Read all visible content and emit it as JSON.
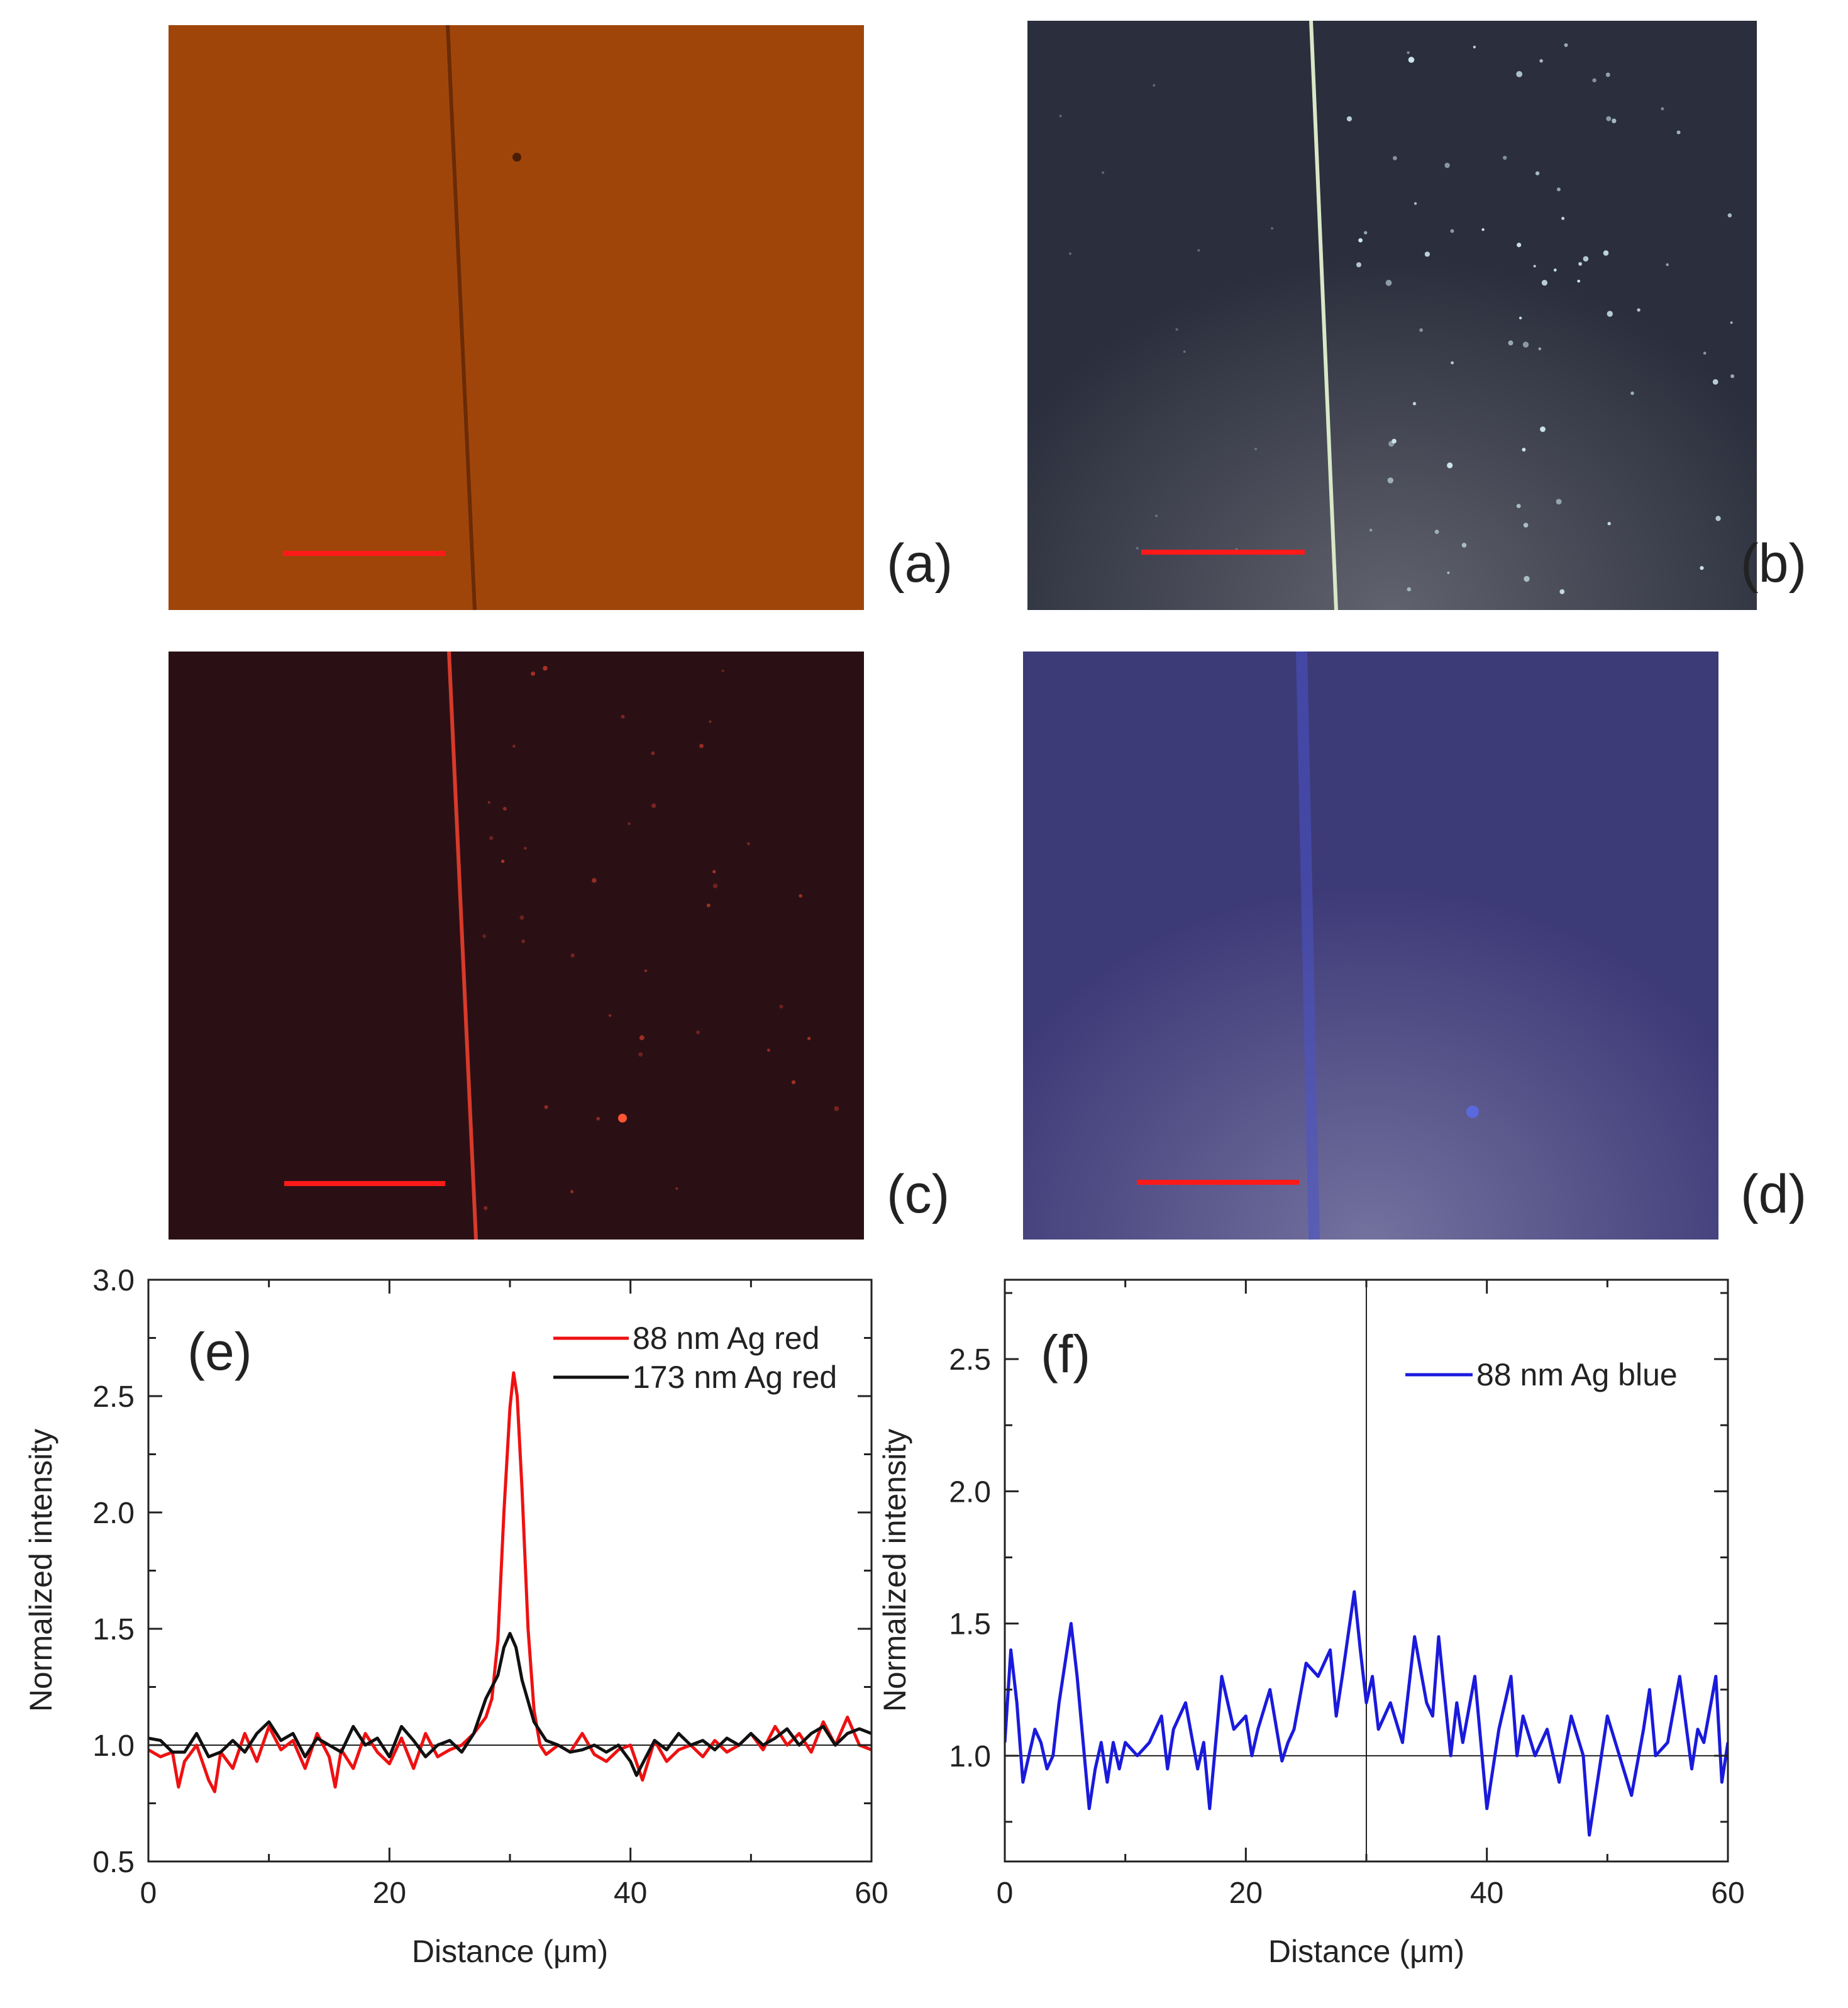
{
  "photos": [
    {
      "label": "(a)",
      "colors": {
        "base": "#a0450a",
        "line": "#6a2b05",
        "scalebar": "#ff1a1a"
      }
    },
    {
      "label": "(b)",
      "colors": {
        "base": "#2b2e3c",
        "line": "#d8e8c8",
        "scalebar": "#ff1a1a"
      }
    },
    {
      "label": "(c)",
      "colors": {
        "base": "#2a1015",
        "line": "#d83a2a",
        "scalebar": "#ff1a1a"
      }
    },
    {
      "label": "(d)",
      "colors": {
        "base": "#3d3a78",
        "line": "#4a54c8",
        "scalebar": "#ff1a1a"
      }
    }
  ],
  "chart_data": [
    {
      "type": "line",
      "panel_label": "(e)",
      "xlabel": "Distance (μm)",
      "ylabel": "Normalized intensity",
      "xlim": [
        0,
        60
      ],
      "ylim": [
        0.5,
        3.0
      ],
      "xticks": [
        0,
        20,
        40,
        60
      ],
      "xtick_labels": [
        "0",
        "20",
        "40",
        "60"
      ],
      "yticks": [
        0.5,
        1.0,
        1.5,
        2.0,
        2.5,
        3.0
      ],
      "ytick_labels": [
        "0.5",
        "1.0",
        "1.5",
        "2.0",
        "2.5",
        "3.0"
      ],
      "reference_lines": {
        "y": 1.0
      },
      "legend_position": "top-right",
      "series": [
        {
          "name": "88 nm Ag red",
          "color": "#ee1111",
          "x": [
            0,
            1,
            2,
            2.5,
            3,
            4,
            5,
            5.5,
            6,
            7,
            8,
            9,
            10,
            11,
            12,
            13,
            14,
            15,
            15.5,
            16,
            17,
            18,
            19,
            20,
            21,
            22,
            23,
            24,
            25,
            26,
            27,
            28,
            28.5,
            29,
            29.5,
            30,
            30.3,
            30.6,
            31,
            31.5,
            32,
            32.5,
            33,
            34,
            35,
            36,
            37,
            38,
            39,
            40,
            41,
            42,
            43,
            44,
            45,
            46,
            47,
            48,
            49,
            50,
            51,
            52,
            53,
            54,
            55,
            56,
            57,
            58,
            59,
            60
          ],
          "y": [
            0.98,
            0.95,
            0.97,
            0.82,
            0.93,
            1.0,
            0.85,
            0.8,
            0.97,
            0.9,
            1.05,
            0.93,
            1.08,
            0.98,
            1.02,
            0.9,
            1.05,
            0.95,
            0.82,
            0.98,
            0.9,
            1.05,
            0.97,
            0.92,
            1.03,
            0.9,
            1.05,
            0.95,
            0.98,
            1.0,
            1.05,
            1.12,
            1.2,
            1.45,
            2.0,
            2.45,
            2.6,
            2.5,
            2.1,
            1.5,
            1.15,
            1.0,
            0.96,
            1.0,
            0.97,
            1.05,
            0.96,
            0.93,
            0.98,
            1.0,
            0.85,
            1.02,
            0.93,
            0.98,
            1.0,
            0.95,
            1.02,
            0.97,
            1.0,
            1.05,
            0.98,
            1.08,
            1.0,
            1.05,
            0.97,
            1.1,
            1.0,
            1.12,
            1.0,
            0.98
          ]
        },
        {
          "name": "173 nm Ag red",
          "color": "#111111",
          "x": [
            0,
            1,
            2,
            3,
            4,
            5,
            6,
            7,
            8,
            9,
            10,
            11,
            12,
            13,
            14,
            15,
            16,
            17,
            18,
            19,
            20,
            21,
            22,
            23,
            24,
            25,
            26,
            27,
            28,
            29,
            29.5,
            30,
            30.5,
            31,
            32,
            33,
            34,
            35,
            36,
            37,
            38,
            39,
            40,
            40.5,
            41,
            42,
            43,
            44,
            45,
            46,
            47,
            48,
            49,
            50,
            51,
            52,
            53,
            54,
            55,
            56,
            57,
            58,
            59,
            60
          ],
          "y": [
            1.03,
            1.02,
            0.97,
            0.97,
            1.05,
            0.95,
            0.97,
            1.02,
            0.97,
            1.05,
            1.1,
            1.02,
            1.05,
            0.95,
            1.03,
            1.0,
            0.97,
            1.08,
            1.0,
            1.03,
            0.95,
            1.08,
            1.02,
            0.95,
            1.0,
            1.02,
            0.97,
            1.05,
            1.2,
            1.3,
            1.42,
            1.48,
            1.42,
            1.28,
            1.1,
            1.02,
            1.0,
            0.97,
            0.98,
            1.0,
            0.97,
            1.0,
            0.93,
            0.87,
            0.92,
            1.02,
            0.98,
            1.05,
            1.0,
            1.02,
            0.98,
            1.03,
            1.0,
            1.05,
            1.0,
            1.03,
            1.07,
            1.0,
            1.05,
            1.08,
            1.0,
            1.05,
            1.07,
            1.05
          ]
        }
      ]
    },
    {
      "type": "line",
      "panel_label": "(f)",
      "xlabel": "Distance (μm)",
      "ylabel": "Normalized intensity",
      "xlim": [
        0,
        60
      ],
      "ylim": [
        0.6,
        2.8
      ],
      "xticks": [
        0,
        20,
        40,
        60
      ],
      "xtick_labels": [
        "0",
        "20",
        "40",
        "60"
      ],
      "yticks": [
        1.0,
        1.5,
        2.0,
        2.5
      ],
      "ytick_labels": [
        "1.0",
        "1.5",
        "2.0",
        "2.5"
      ],
      "reference_lines": {
        "y": 1.0,
        "x": 30
      },
      "legend_position": "top-right",
      "series": [
        {
          "name": "88 nm Ag blue",
          "color": "#1a1adc",
          "x": [
            0,
            0.5,
            1,
            1.5,
            2,
            2.5,
            3,
            3.5,
            4,
            4.5,
            5,
            5.5,
            6,
            6.5,
            7,
            7.5,
            8,
            8.5,
            9,
            9.5,
            10,
            11,
            12,
            13,
            13.5,
            14,
            15,
            16,
            16.5,
            17,
            18,
            18.5,
            19,
            20,
            20.5,
            21,
            22,
            23,
            23.5,
            24,
            25,
            26,
            27,
            27.5,
            28,
            29,
            29.5,
            30,
            30.5,
            31,
            32,
            33,
            34,
            35,
            35.5,
            36,
            37,
            37.5,
            38,
            39,
            40,
            41,
            42,
            42.5,
            43,
            44,
            45,
            46,
            47,
            48,
            48.5,
            49,
            50,
            51,
            52,
            53,
            53.5,
            54,
            55,
            56,
            57,
            57.5,
            58,
            59,
            59.5,
            60
          ],
          "y": [
            1.05,
            1.4,
            1.2,
            0.9,
            1.0,
            1.1,
            1.05,
            0.95,
            1.0,
            1.2,
            1.35,
            1.5,
            1.3,
            1.05,
            0.8,
            0.95,
            1.05,
            0.9,
            1.05,
            0.95,
            1.05,
            1.0,
            1.05,
            1.15,
            0.95,
            1.1,
            1.2,
            0.95,
            1.05,
            0.8,
            1.3,
            1.2,
            1.1,
            1.15,
            1.0,
            1.1,
            1.25,
            0.98,
            1.05,
            1.1,
            1.35,
            1.3,
            1.4,
            1.15,
            1.3,
            1.62,
            1.4,
            1.2,
            1.3,
            1.1,
            1.2,
            1.05,
            1.45,
            1.2,
            1.15,
            1.45,
            1.0,
            1.2,
            1.05,
            1.3,
            0.8,
            1.1,
            1.3,
            1.0,
            1.15,
            1.0,
            1.1,
            0.9,
            1.15,
            1.0,
            0.7,
            0.85,
            1.15,
            1.0,
            0.85,
            1.1,
            1.25,
            1.0,
            1.05,
            1.3,
            0.95,
            1.1,
            1.05,
            1.3,
            0.9,
            1.05
          ]
        }
      ]
    }
  ]
}
